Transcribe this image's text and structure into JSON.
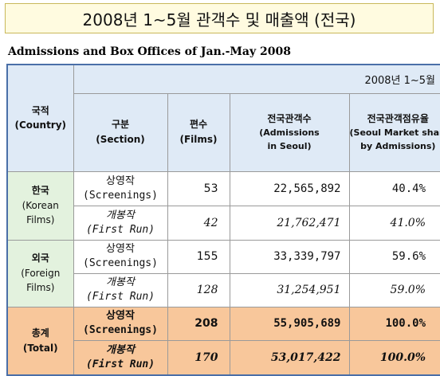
{
  "title": "2008년 1~5월 관객수 및 매출액 (전국)",
  "subtitle": "Admissions and Box Offices of Jan.-May 2008",
  "date_range": "2008년 1~5월",
  "headers": {
    "country_ko": "국적",
    "country_en": "(Country)",
    "section_ko": "구분",
    "section_en": "(Section)",
    "films_ko": "편수",
    "films_en": "(Films)",
    "admissions_ko": "전국관객수",
    "admissions_en1": "(Admissions",
    "admissions_en2": "in Seoul)",
    "share_ko": "전국관객점유율",
    "share_en1": "(Seoul Market share",
    "share_en2": "by Admissions)"
  },
  "groups": [
    {
      "country_ko": "한국",
      "country_en1": "(Korean",
      "country_en2": "Films)",
      "rows": [
        {
          "section_ko": "상영작",
          "section_en": "(Screenings)",
          "films": "53",
          "admissions": "22,565,892",
          "share": "40.4%"
        },
        {
          "section_ko": "개봉작",
          "section_en": "(First Run)",
          "films": "42",
          "admissions": "21,762,471",
          "share": "41.0%"
        }
      ]
    },
    {
      "country_ko": "외국",
      "country_en1": "(Foreign",
      "country_en2": "Films)",
      "rows": [
        {
          "section_ko": "상영작",
          "section_en": "(Screenings)",
          "films": "155",
          "admissions": "33,339,797",
          "share": "59.6%"
        },
        {
          "section_ko": "개봉작",
          "section_en": "(First Run)",
          "films": "128",
          "admissions": "31,254,951",
          "share": "59.0%"
        }
      ]
    },
    {
      "country_ko": "총계",
      "country_en1": "(Total)",
      "country_en2": "",
      "rows": [
        {
          "section_ko": "상영작",
          "section_en": "(Screenings)",
          "films": "208",
          "admissions": "55,905,689",
          "share": "100.0%"
        },
        {
          "section_ko": "개봉작",
          "section_en": "(First Run)",
          "films": "170",
          "admissions": "53,017,422",
          "share": "100.0%"
        }
      ]
    }
  ]
}
